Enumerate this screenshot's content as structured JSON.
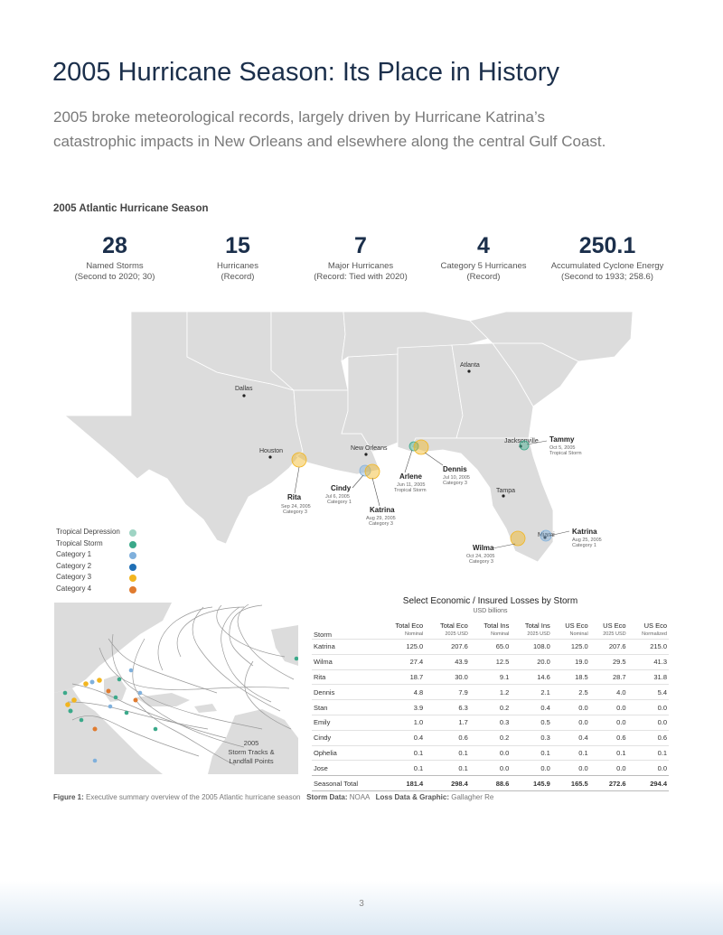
{
  "title": "2005 Hurricane Season: Its Place in History",
  "subtitle": "2005 broke meteorological records, largely driven by Hurricane Katrina’s catastrophic impacts in New Orleans and elsewhere along the central Gulf Coast.",
  "section_heading": "2005 Atlantic Hurricane Season",
  "stats": [
    {
      "value": "28",
      "label": "Named Storms",
      "note": "(Second to 2020; 30)"
    },
    {
      "value": "15",
      "label": "Hurricanes",
      "note": "(Record)"
    },
    {
      "value": "7",
      "label": "Major Hurricanes",
      "note": "(Record: Tied with 2020)"
    },
    {
      "value": "4",
      "label": "Category 5 Hurricanes",
      "note": "(Record)"
    },
    {
      "value": "250.1",
      "label": "Accumulated Cyclone Energy",
      "note": "(Second to 1933; 258.6)"
    }
  ],
  "colors": {
    "tropical_depression": "#9fd4c4",
    "tropical_storm": "#3ba98a",
    "category_1": "#7fb0dc",
    "category_2": "#1f6fb5",
    "category_3": "#f2b51f",
    "category_4": "#e07b2f",
    "title": "#1b2f4b",
    "land": "#dcdcdc"
  },
  "legend": [
    {
      "label": "Tropical Depression",
      "color": "#9fd4c4"
    },
    {
      "label": "Tropical Storm",
      "color": "#3ba98a"
    },
    {
      "label": "Category 1",
      "color": "#7fb0dc"
    },
    {
      "label": "Category 2",
      "color": "#1f6fb5"
    },
    {
      "label": "Category 3",
      "color": "#f2b51f"
    },
    {
      "label": "Category 4",
      "color": "#e07b2f"
    }
  ],
  "cities": {
    "dallas": "Dallas",
    "houston": "Houston",
    "new_orleans": "New Orleans",
    "atlanta": "Atlanta",
    "jacksonville": "Jacksonville",
    "tampa": "Tampa",
    "miami": "Miami"
  },
  "landfalls": {
    "rita": {
      "name": "Rita",
      "date": "Sep 24, 2005",
      "category": "Category 3"
    },
    "cindy": {
      "name": "Cindy",
      "date": "Jul 6, 2005",
      "category": "Category 1"
    },
    "katrina_gulf": {
      "name": "Katrina",
      "date": "Aug 29, 2005",
      "category": "Category 3"
    },
    "arlene": {
      "name": "Arlene",
      "date": "Jun 11, 2005",
      "category": "Tropical Storm"
    },
    "dennis": {
      "name": "Dennis",
      "date": "Jul 10, 2005",
      "category": "Category 3"
    },
    "tammy": {
      "name": "Tammy",
      "date": "Oct 5, 2005",
      "category": "Tropical Storm"
    },
    "katrina_fl": {
      "name": "Katrina",
      "date": "Aug 25, 2005",
      "category": "Category 1"
    },
    "wilma": {
      "name": "Wilma",
      "date": "Oct 24, 2005",
      "category": "Category 3"
    }
  },
  "tracks_caption": {
    "line1": "2005",
    "line2": "Storm Tracks &",
    "line3": "Landfall Points"
  },
  "losses": {
    "title": "Select Economic / Insured Losses by Storm",
    "subtitle": "USD billions",
    "storm_header": "Storm",
    "columns": [
      {
        "h1": "Total Eco",
        "h2": "Nominal"
      },
      {
        "h1": "Total Eco",
        "h2": "2025 USD"
      },
      {
        "h1": "Total Ins",
        "h2": "Nominal"
      },
      {
        "h1": "Total Ins",
        "h2": "2025 USD"
      },
      {
        "h1": "US Eco",
        "h2": "Nominal"
      },
      {
        "h1": "US Eco",
        "h2": "2025 USD"
      },
      {
        "h1": "US Eco",
        "h2": "Normalized"
      }
    ],
    "rows": [
      {
        "storm": "Katrina",
        "values": [
          "125.0",
          "207.6",
          "65.0",
          "108.0",
          "125.0",
          "207.6",
          "215.0"
        ]
      },
      {
        "storm": "Wilma",
        "values": [
          "27.4",
          "43.9",
          "12.5",
          "20.0",
          "19.0",
          "29.5",
          "41.3"
        ]
      },
      {
        "storm": "Rita",
        "values": [
          "18.7",
          "30.0",
          "9.1",
          "14.6",
          "18.5",
          "28.7",
          "31.8"
        ]
      },
      {
        "storm": "Dennis",
        "values": [
          "4.8",
          "7.9",
          "1.2",
          "2.1",
          "2.5",
          "4.0",
          "5.4"
        ]
      },
      {
        "storm": "Stan",
        "values": [
          "3.9",
          "6.3",
          "0.2",
          "0.4",
          "0.0",
          "0.0",
          "0.0"
        ]
      },
      {
        "storm": "Emily",
        "values": [
          "1.0",
          "1.7",
          "0.3",
          "0.5",
          "0.0",
          "0.0",
          "0.0"
        ]
      },
      {
        "storm": "Cindy",
        "values": [
          "0.4",
          "0.6",
          "0.2",
          "0.3",
          "0.4",
          "0.6",
          "0.6"
        ]
      },
      {
        "storm": "Ophelia",
        "values": [
          "0.1",
          "0.1",
          "0.0",
          "0.1",
          "0.1",
          "0.1",
          "0.1"
        ]
      },
      {
        "storm": "Jose",
        "values": [
          "0.1",
          "0.1",
          "0.0",
          "0.0",
          "0.0",
          "0.0",
          "0.0"
        ]
      }
    ],
    "total": {
      "storm": "Seasonal Total",
      "values": [
        "181.4",
        "298.4",
        "88.6",
        "145.9",
        "165.5",
        "272.6",
        "294.4"
      ]
    }
  },
  "footnote": {
    "fig_label": "Figure 1:",
    "fig_text": "Executive summary overview of the 2005 Atlantic hurricane season",
    "storm_label": "Storm Data:",
    "storm_text": "NOAA",
    "loss_label": "Loss Data & Graphic:",
    "loss_text": "Gallagher Re"
  },
  "page_number": "3"
}
